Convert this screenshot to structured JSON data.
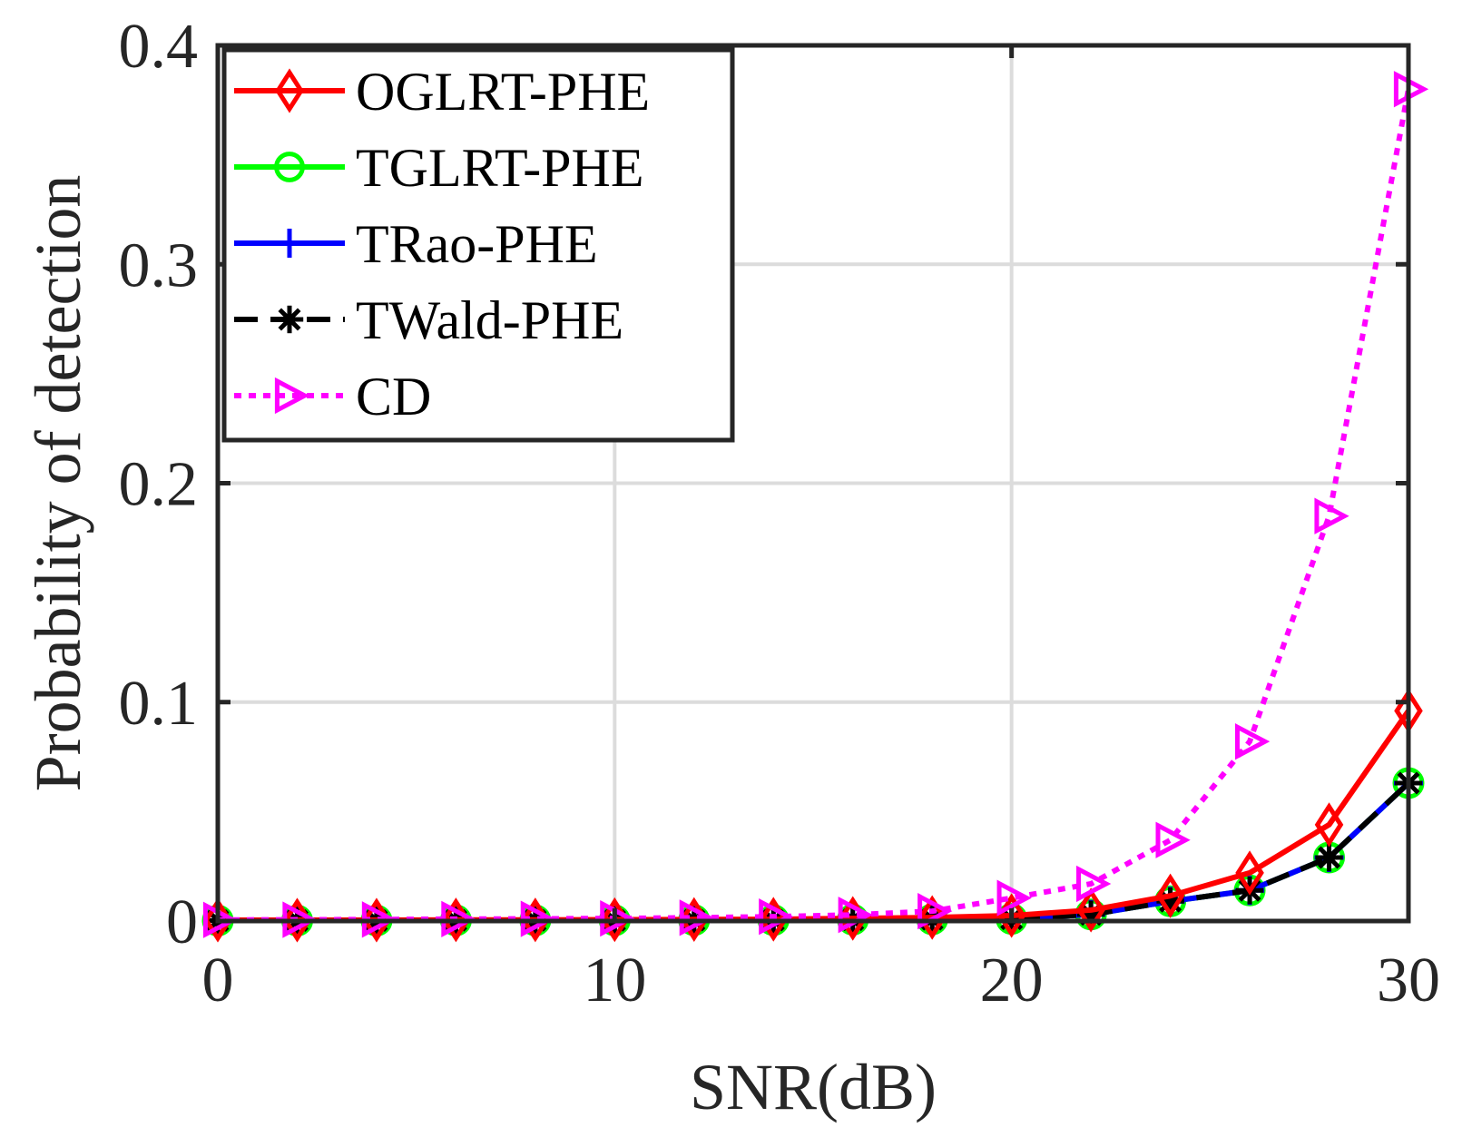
{
  "chart_data": {
    "type": "line",
    "title": "",
    "xlabel": "SNR(dB)",
    "ylabel": "Probability of detection",
    "xlim": [
      0,
      30
    ],
    "ylim": [
      0,
      0.4
    ],
    "xticks": [
      0,
      10,
      20,
      30
    ],
    "yticks": [
      0,
      0.1,
      0.2,
      0.3,
      0.4
    ],
    "xtick_labels": [
      "0",
      "10",
      "20",
      "30"
    ],
    "ytick_labels": [
      "0",
      "0.1",
      "0.2",
      "0.3",
      "0.4"
    ],
    "grid": true,
    "legend_position": "top-left",
    "x": [
      0,
      2,
      4,
      6,
      8,
      10,
      12,
      14,
      16,
      18,
      20,
      22,
      24,
      26,
      28,
      30
    ],
    "series": [
      {
        "name": "OGLRT-PHE",
        "color": "#ff0000",
        "line_style": "solid",
        "marker": "diamond",
        "values": [
          0.0004,
          0.0004,
          0.0004,
          0.0005,
          0.0005,
          0.0006,
          0.0007,
          0.0008,
          0.0012,
          0.0016,
          0.0025,
          0.005,
          0.0115,
          0.022,
          0.044,
          0.096
        ]
      },
      {
        "name": "TGLRT-PHE",
        "color": "#00ff00",
        "line_style": "solid",
        "marker": "circle",
        "values": [
          0.0002,
          0.0002,
          0.0002,
          0.0003,
          0.0003,
          0.0003,
          0.0004,
          0.0004,
          0.0006,
          0.0008,
          0.001,
          0.003,
          0.009,
          0.014,
          0.029,
          0.063
        ]
      },
      {
        "name": "TRao-PHE",
        "color": "#0000ff",
        "line_style": "solid",
        "marker": "plus",
        "values": [
          0.0002,
          0.0002,
          0.0002,
          0.0003,
          0.0003,
          0.0003,
          0.0004,
          0.0004,
          0.0006,
          0.0008,
          0.001,
          0.003,
          0.009,
          0.014,
          0.029,
          0.063
        ]
      },
      {
        "name": "TWald-PHE",
        "color": "#000000",
        "line_style": "dashed",
        "marker": "asterisk",
        "values": [
          0.0002,
          0.0002,
          0.0002,
          0.0003,
          0.0003,
          0.0003,
          0.0004,
          0.0004,
          0.0006,
          0.0008,
          0.001,
          0.003,
          0.009,
          0.014,
          0.029,
          0.063
        ]
      },
      {
        "name": "CD",
        "color": "#ff00ff",
        "line_style": "dotted",
        "marker": "triangle-right",
        "values": [
          0.0005,
          0.0006,
          0.0007,
          0.0009,
          0.001,
          0.0012,
          0.0015,
          0.002,
          0.0028,
          0.0045,
          0.0105,
          0.017,
          0.037,
          0.082,
          0.185,
          0.38
        ]
      }
    ]
  }
}
